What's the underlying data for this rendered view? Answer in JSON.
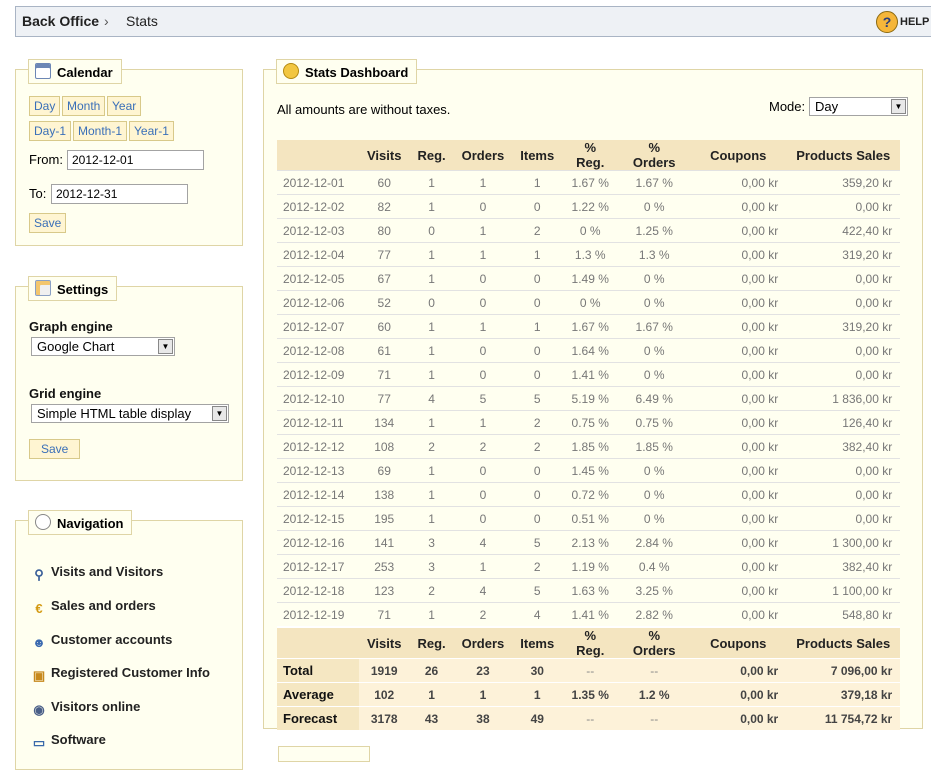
{
  "breadcrumb": {
    "home": "Back Office",
    "separator": "›",
    "current": "Stats"
  },
  "help": {
    "label": "HELP"
  },
  "calendar": {
    "title": "Calendar",
    "buttons_row1": [
      "Day",
      "Month",
      "Year"
    ],
    "buttons_row2": [
      "Day-1",
      "Month-1",
      "Year-1"
    ],
    "from_label": "From:",
    "from_value": "2012-12-01",
    "to_label": "To:",
    "to_value": "2012-12-31",
    "save_label": "Save"
  },
  "settings": {
    "title": "Settings",
    "graph_label": "Graph engine",
    "graph_value": "Google Chart",
    "grid_label": "Grid engine",
    "grid_value": "Simple HTML table display",
    "save_label": "Save"
  },
  "navigation": {
    "title": "Navigation",
    "items": [
      {
        "label": "Visits and Visitors",
        "icon": "magnifier-user-icon"
      },
      {
        "label": "Sales and orders",
        "icon": "euro-icon"
      },
      {
        "label": "Customer accounts",
        "icon": "user-icon"
      },
      {
        "label": "Registered Customer Info",
        "icon": "user-card-icon"
      },
      {
        "label": "Visitors online",
        "icon": "eye-icon"
      },
      {
        "label": "Software",
        "icon": "monitor-icon"
      }
    ]
  },
  "dashboard": {
    "title": "Stats Dashboard",
    "note": "All amounts are without taxes.",
    "mode_label": "Mode:",
    "mode_value": "Day",
    "columns": [
      "",
      "Visits",
      "Reg.",
      "Orders",
      "Items",
      "% Reg.",
      "% Orders",
      "Coupons",
      "Products Sales"
    ],
    "rows": [
      [
        "2012-12-01",
        "60",
        "1",
        "1",
        "1",
        "1.67 %",
        "1.67 %",
        "0,00 kr",
        "359,20 kr"
      ],
      [
        "2012-12-02",
        "82",
        "1",
        "0",
        "0",
        "1.22 %",
        "0 %",
        "0,00 kr",
        "0,00 kr"
      ],
      [
        "2012-12-03",
        "80",
        "0",
        "1",
        "2",
        "0 %",
        "1.25 %",
        "0,00 kr",
        "422,40 kr"
      ],
      [
        "2012-12-04",
        "77",
        "1",
        "1",
        "1",
        "1.3 %",
        "1.3 %",
        "0,00 kr",
        "319,20 kr"
      ],
      [
        "2012-12-05",
        "67",
        "1",
        "0",
        "0",
        "1.49 %",
        "0 %",
        "0,00 kr",
        "0,00 kr"
      ],
      [
        "2012-12-06",
        "52",
        "0",
        "0",
        "0",
        "0 %",
        "0 %",
        "0,00 kr",
        "0,00 kr"
      ],
      [
        "2012-12-07",
        "60",
        "1",
        "1",
        "1",
        "1.67 %",
        "1.67 %",
        "0,00 kr",
        "319,20 kr"
      ],
      [
        "2012-12-08",
        "61",
        "1",
        "0",
        "0",
        "1.64 %",
        "0 %",
        "0,00 kr",
        "0,00 kr"
      ],
      [
        "2012-12-09",
        "71",
        "1",
        "0",
        "0",
        "1.41 %",
        "0 %",
        "0,00 kr",
        "0,00 kr"
      ],
      [
        "2012-12-10",
        "77",
        "4",
        "5",
        "5",
        "5.19 %",
        "6.49 %",
        "0,00 kr",
        "1 836,00 kr"
      ],
      [
        "2012-12-11",
        "134",
        "1",
        "1",
        "2",
        "0.75 %",
        "0.75 %",
        "0,00 kr",
        "126,40 kr"
      ],
      [
        "2012-12-12",
        "108",
        "2",
        "2",
        "2",
        "1.85 %",
        "1.85 %",
        "0,00 kr",
        "382,40 kr"
      ],
      [
        "2012-12-13",
        "69",
        "1",
        "0",
        "0",
        "1.45 %",
        "0 %",
        "0,00 kr",
        "0,00 kr"
      ],
      [
        "2012-12-14",
        "138",
        "1",
        "0",
        "0",
        "0.72 %",
        "0 %",
        "0,00 kr",
        "0,00 kr"
      ],
      [
        "2012-12-15",
        "195",
        "1",
        "0",
        "0",
        "0.51 %",
        "0 %",
        "0,00 kr",
        "0,00 kr"
      ],
      [
        "2012-12-16",
        "141",
        "3",
        "4",
        "5",
        "2.13 %",
        "2.84 %",
        "0,00 kr",
        "1 300,00 kr"
      ],
      [
        "2012-12-17",
        "253",
        "3",
        "1",
        "2",
        "1.19 %",
        "0.4 %",
        "0,00 kr",
        "382,40 kr"
      ],
      [
        "2012-12-18",
        "123",
        "2",
        "4",
        "5",
        "1.63 %",
        "3.25 %",
        "0,00 kr",
        "1 100,00 kr"
      ],
      [
        "2012-12-19",
        "71",
        "1",
        "2",
        "4",
        "1.41 %",
        "2.82 %",
        "0,00 kr",
        "548,80 kr"
      ]
    ],
    "summary": [
      [
        "Total",
        "1919",
        "26",
        "23",
        "30",
        "--",
        "--",
        "0,00 kr",
        "7 096,00 kr"
      ],
      [
        "Average",
        "102",
        "1",
        "1",
        "1",
        "1.35 %",
        "1.2 %",
        "0,00 kr",
        "379,18 kr"
      ],
      [
        "Forecast",
        "3178",
        "43",
        "38",
        "49",
        "--",
        "--",
        "0,00 kr",
        "11 754,72 kr"
      ]
    ]
  },
  "colors": {
    "panel_bg": "#fffff0",
    "panel_border": "#dfd5a6",
    "header_bg": "#f4e5c0",
    "link": "#3a6fb8"
  }
}
